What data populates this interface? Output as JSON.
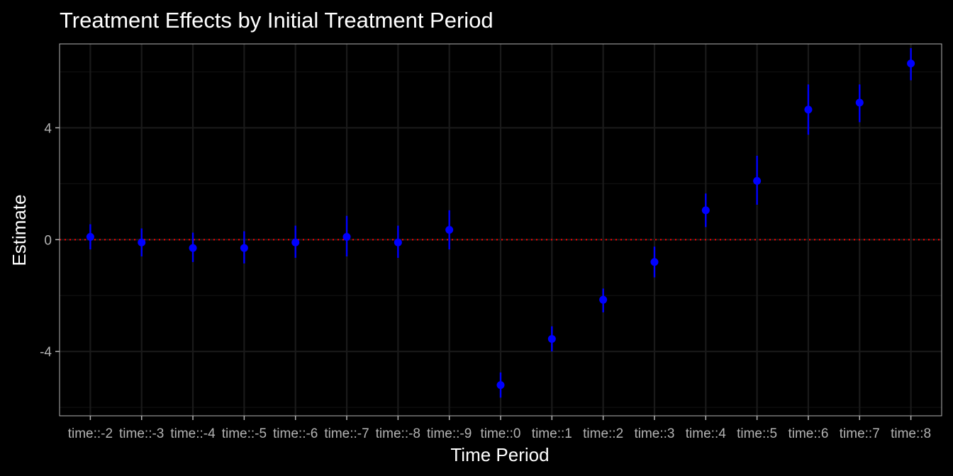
{
  "chart_data": {
    "type": "scatter",
    "title": "Treatment Effects by Initial Treatment Period",
    "xlabel": "Time Period",
    "ylabel": "Estimate",
    "categories": [
      "time::-2",
      "time::-3",
      "time::-4",
      "time::-5",
      "time::-6",
      "time::-7",
      "time::-8",
      "time::-9",
      "time::0",
      "time::1",
      "time::2",
      "time::3",
      "time::4",
      "time::5",
      "time::6",
      "time::7",
      "time::8"
    ],
    "series": [
      {
        "values": [
          0.1,
          -0.1,
          -0.3,
          -0.3,
          -0.1,
          0.1,
          -0.1,
          0.35,
          -5.2,
          -3.55,
          -2.15,
          -0.8,
          1.05,
          2.1,
          4.65,
          4.9,
          6.3
        ],
        "ci_lower": [
          -0.35,
          -0.6,
          -0.8,
          -0.85,
          -0.65,
          -0.6,
          -0.65,
          -0.35,
          -5.65,
          -4.0,
          -2.6,
          -1.35,
          0.45,
          1.25,
          3.75,
          4.2,
          5.7
        ],
        "ci_upper": [
          0.55,
          0.4,
          0.25,
          0.3,
          0.5,
          0.85,
          0.5,
          1.05,
          -4.75,
          -3.1,
          -1.75,
          -0.25,
          1.65,
          3.0,
          5.55,
          5.55,
          6.85
        ]
      }
    ],
    "ylim": [
      -6.3,
      7.0
    ],
    "yticks": [
      -4,
      0,
      4
    ],
    "reference_line": 0,
    "grid": true,
    "legend": "none",
    "colors": {
      "points": "#0000ff",
      "reference_line": "#ff0000",
      "background": "#000000",
      "panel_border": "#b3b3b3",
      "grid_major": "#1a1a1a",
      "grid_minor": "#0f0f0f",
      "text": "#ffffff",
      "tick_text": "#b3b3b3"
    }
  }
}
